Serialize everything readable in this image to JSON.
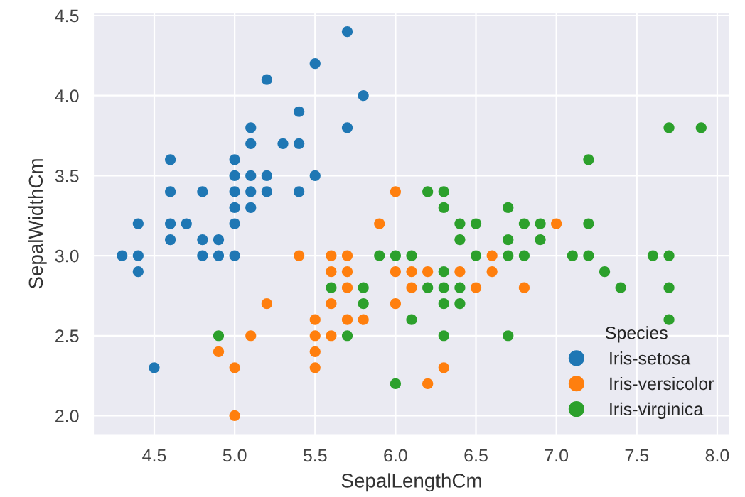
{
  "chart_data": {
    "type": "scatter",
    "xlabel": "SepalLengthCm",
    "ylabel": "SepalWidthCm",
    "legend_title": "Species",
    "legend": "bottom right",
    "grid": true,
    "marker": "circle",
    "xlim": [
      4.12,
      8.08
    ],
    "xticks": [
      4.5,
      {
        "value": 5,
        "label": "5.0"
      },
      5.5,
      {
        "value": 6,
        "label": "6.0"
      },
      6.5,
      {
        "value": 7,
        "label": "7.0"
      },
      7.5,
      {
        "value": 8,
        "label": "8.0"
      }
    ],
    "ylim": [
      1.88,
      4.52
    ],
    "yticks": [
      {
        "value": 2,
        "label": "2.0"
      },
      2.5,
      {
        "value": 3,
        "label": "3.0"
      },
      3.5,
      {
        "value": 4,
        "label": "4.0"
      },
      4.5
    ],
    "series": [
      {
        "name": "Iris-setosa",
        "color": "#1f77b4",
        "x": [
          5.1,
          4.9,
          4.7,
          4.6,
          5.0,
          5.4,
          4.6,
          5.0,
          4.4,
          4.9,
          5.4,
          4.8,
          4.8,
          4.3,
          5.8,
          5.7,
          5.7,
          5.1,
          5.4,
          5.1,
          4.6,
          5.1,
          5.0,
          5.2,
          5.2,
          4.8,
          5.2,
          5.5,
          5.0,
          5.5,
          4.4,
          5.1,
          5.0,
          4.5,
          4.4,
          4.6,
          5.3,
          5.0
        ],
        "values": [
          3.5,
          3.0,
          3.2,
          3.1,
          3.6,
          3.9,
          3.4,
          3.4,
          2.9,
          3.1,
          3.7,
          3.4,
          3.0,
          3.0,
          4.0,
          4.4,
          3.8,
          3.8,
          3.4,
          3.7,
          3.6,
          3.3,
          3.0,
          3.5,
          3.4,
          3.1,
          4.1,
          4.2,
          3.2,
          3.5,
          3.0,
          3.4,
          3.5,
          2.3,
          3.2,
          3.2,
          3.7,
          3.3
        ]
      },
      {
        "name": "Iris-versicolor",
        "color": "#ff7f0e",
        "x": [
          7.0,
          5.5,
          6.5,
          5.7,
          4.9,
          6.6,
          5.2,
          5.0,
          6.1,
          5.6,
          5.6,
          6.2,
          5.6,
          5.9,
          6.1,
          6.4,
          6.6,
          6.8,
          6.0,
          5.7,
          5.5,
          6.0,
          5.4,
          6.0,
          6.3,
          5.5,
          5.5,
          5.8,
          5.0,
          5.6,
          5.7,
          5.7,
          6.2,
          5.1
        ],
        "values": [
          3.2,
          2.3,
          2.8,
          2.8,
          2.4,
          2.9,
          2.7,
          2.0,
          2.9,
          2.9,
          3.0,
          2.2,
          2.5,
          3.2,
          2.8,
          2.9,
          3.0,
          2.8,
          2.9,
          2.6,
          2.4,
          2.7,
          3.0,
          3.4,
          2.3,
          2.5,
          2.6,
          2.6,
          2.3,
          2.7,
          3.0,
          2.9,
          2.9,
          2.5
        ]
      },
      {
        "name": "Iris-virginica",
        "color": "#2ca02c",
        "x": [
          6.3,
          5.8,
          7.1,
          6.3,
          6.5,
          7.6,
          4.9,
          7.3,
          6.7,
          7.2,
          6.5,
          6.4,
          6.8,
          5.7,
          5.8,
          6.4,
          7.7,
          7.7,
          6.0,
          6.9,
          5.6,
          7.7,
          6.3,
          6.7,
          7.2,
          6.2,
          6.1,
          6.4,
          7.2,
          7.4,
          7.9,
          6.3,
          6.1,
          7.7,
          6.3,
          6.4,
          6.0,
          6.9,
          6.7,
          6.8,
          6.7,
          6.3,
          6.2,
          5.9
        ],
        "values": [
          3.3,
          2.7,
          3.0,
          2.9,
          3.0,
          3.0,
          2.5,
          2.9,
          2.5,
          3.6,
          3.2,
          2.7,
          3.0,
          2.5,
          2.8,
          3.2,
          3.8,
          2.6,
          2.2,
          3.2,
          2.8,
          2.8,
          2.7,
          3.3,
          3.2,
          2.8,
          3.0,
          2.8,
          3.0,
          2.8,
          3.8,
          2.8,
          2.6,
          3.0,
          3.4,
          3.1,
          3.0,
          3.1,
          3.1,
          3.2,
          3.0,
          2.5,
          3.4,
          3.0
        ]
      }
    ]
  }
}
